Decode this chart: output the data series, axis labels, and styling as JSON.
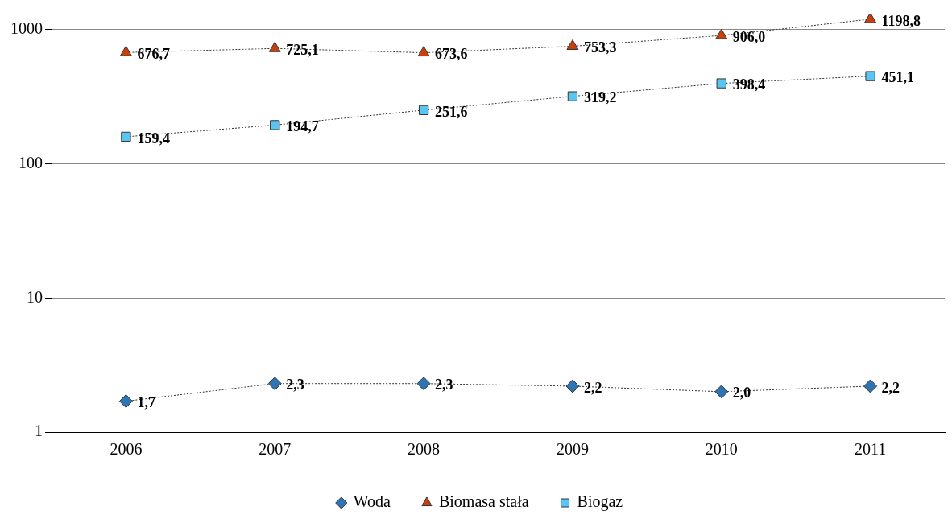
{
  "chart_data": {
    "type": "line",
    "categories": [
      "2006",
      "2007",
      "2008",
      "2009",
      "2010",
      "2011"
    ],
    "series": [
      {
        "name": "Woda",
        "color": "#2e75b6",
        "marker": "diamond",
        "values": [
          1.7,
          2.3,
          2.3,
          2.2,
          2.0,
          2.2
        ],
        "value_labels": [
          "1,7",
          "2,3",
          "2,3",
          "2,2",
          "2,0",
          "2,2"
        ]
      },
      {
        "name": "Biomasa stała",
        "color": "#c8400c",
        "marker": "triangle",
        "values": [
          676.7,
          725.1,
          673.6,
          753.3,
          906.0,
          1198.8
        ],
        "value_labels": [
          "676,7",
          "725,1",
          "673,6",
          "753,3",
          "906,0",
          "1198,8"
        ]
      },
      {
        "name": "Biogaz",
        "color": "#5bc5f2",
        "marker": "square",
        "values": [
          159.4,
          194.7,
          251.6,
          319.2,
          398.4,
          451.1
        ],
        "value_labels": [
          "159,4",
          "194,7",
          "251,6",
          "319,2",
          "398,4",
          "451,1"
        ]
      }
    ],
    "log": "y",
    "ylim": [
      1,
      1300
    ],
    "yticks": [
      1,
      10,
      100,
      1000
    ],
    "grid": "y",
    "legend": "bottom",
    "line_style": "dotted"
  }
}
